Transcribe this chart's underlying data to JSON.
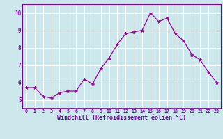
{
  "x": [
    0,
    1,
    2,
    3,
    4,
    5,
    6,
    7,
    8,
    9,
    10,
    11,
    12,
    13,
    14,
    15,
    16,
    17,
    18,
    19,
    20,
    21,
    22,
    23
  ],
  "y": [
    5.7,
    5.7,
    5.2,
    5.1,
    5.4,
    5.5,
    5.5,
    6.2,
    5.9,
    6.8,
    7.4,
    8.2,
    8.8,
    8.9,
    9.0,
    10.0,
    9.5,
    9.7,
    8.8,
    8.4,
    7.6,
    7.3,
    6.6,
    6.0
  ],
  "line_color": "#990099",
  "marker": "*",
  "marker_size": 3.5,
  "bg_color": "#cce8ec",
  "grid_color": "#ffffff",
  "xlabel": "Windchill (Refroidissement éolien,°C)",
  "xlabel_color": "#7700aa",
  "tick_color": "#7700aa",
  "axis_line_color": "#7700aa",
  "ylim": [
    4.5,
    10.5
  ],
  "xlim": [
    -0.5,
    23.5
  ],
  "yticks": [
    5,
    6,
    7,
    8,
    9,
    10
  ],
  "xticks": [
    0,
    1,
    2,
    3,
    4,
    5,
    6,
    7,
    8,
    9,
    10,
    11,
    12,
    13,
    14,
    15,
    16,
    17,
    18,
    19,
    20,
    21,
    22,
    23
  ],
  "title": ""
}
